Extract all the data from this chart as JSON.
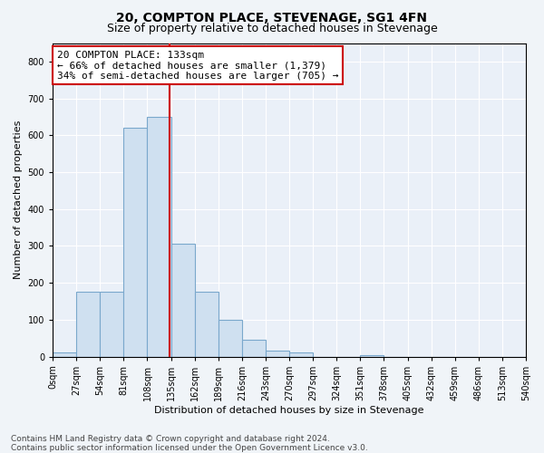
{
  "title": "20, COMPTON PLACE, STEVENAGE, SG1 4FN",
  "subtitle": "Size of property relative to detached houses in Stevenage",
  "xlabel": "Distribution of detached houses by size in Stevenage",
  "ylabel": "Number of detached properties",
  "bar_bins": [
    0,
    27,
    54,
    81,
    108,
    135,
    162,
    189,
    216,
    243,
    270,
    297,
    324,
    351,
    378,
    405,
    432,
    459,
    486,
    513,
    540
  ],
  "bar_heights": [
    10,
    175,
    175,
    620,
    650,
    305,
    175,
    100,
    45,
    15,
    10,
    0,
    0,
    5,
    0,
    0,
    0,
    0,
    0,
    0
  ],
  "bar_color": "#cfe0f0",
  "bar_edgecolor": "#7aa8cc",
  "property_value": 133,
  "vline_color": "#cc0000",
  "annotation_text": "20 COMPTON PLACE: 133sqm\n← 66% of detached houses are smaller (1,379)\n34% of semi-detached houses are larger (705) →",
  "annotation_box_edgecolor": "#cc0000",
  "annotation_box_facecolor": "#ffffff",
  "ylim": [
    0,
    850
  ],
  "yticks": [
    0,
    100,
    200,
    300,
    400,
    500,
    600,
    700,
    800
  ],
  "xlim": [
    0,
    540
  ],
  "footer_line1": "Contains HM Land Registry data © Crown copyright and database right 2024.",
  "footer_line2": "Contains public sector information licensed under the Open Government Licence v3.0.",
  "bg_color": "#f0f4f8",
  "plot_bg_color": "#eaf0f8",
  "grid_color": "#ffffff",
  "title_fontsize": 10,
  "subtitle_fontsize": 9,
  "tick_label_fontsize": 7,
  "axis_label_fontsize": 8,
  "annotation_fontsize": 8,
  "footer_fontsize": 6.5
}
